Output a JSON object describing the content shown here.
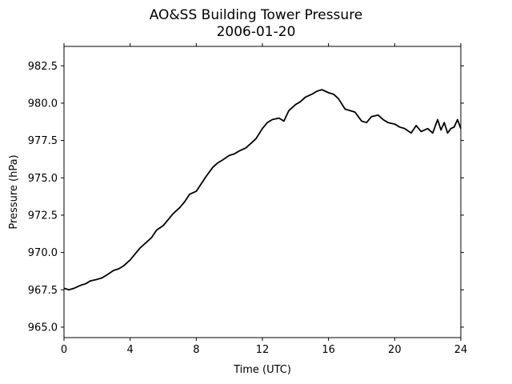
{
  "chart_data": {
    "type": "line",
    "title": "AO&SS Building Tower Pressure",
    "subtitle": "2006-01-20",
    "xlabel": "Time (UTC)",
    "ylabel": "Pressure (hPa)",
    "xlim": [
      0,
      24
    ],
    "ylim": [
      964.3,
      983.8
    ],
    "xticks": [
      0,
      4,
      8,
      12,
      16,
      20,
      24
    ],
    "xtick_labels": [
      "0",
      "4",
      "8",
      "12",
      "16",
      "20",
      "24"
    ],
    "yticks": [
      965.0,
      967.5,
      970.0,
      972.5,
      975.0,
      977.5,
      980.0,
      982.5
    ],
    "ytick_labels": [
      "965.0",
      "967.5",
      "970.0",
      "972.5",
      "975.0",
      "977.5",
      "980.0",
      "982.5"
    ],
    "grid": false,
    "line_color": "#000000",
    "series": [
      {
        "x": [
          0,
          0.3,
          0.6,
          1.0,
          1.3,
          1.6,
          2.0,
          2.3,
          2.6,
          3.0,
          3.3,
          3.6,
          4.0,
          4.3,
          4.6,
          5.0,
          5.3,
          5.6,
          6.0,
          6.3,
          6.6,
          7.0,
          7.3,
          7.6,
          8.0,
          8.3,
          8.6,
          9.0,
          9.3,
          9.6,
          10.0,
          10.3,
          10.6,
          11.0,
          11.3,
          11.6,
          12.0,
          12.3,
          12.6,
          13.0,
          13.3,
          13.6,
          14.0,
          14.3,
          14.6,
          15.0,
          15.3,
          15.6,
          16.0,
          16.3,
          16.6,
          17.0,
          17.3,
          17.6,
          18.0,
          18.3,
          18.6,
          19.0,
          19.3,
          19.6,
          20.0,
          20.3,
          20.6,
          21.0,
          21.3,
          21.6,
          22.0,
          22.3,
          22.6,
          22.8,
          23.0,
          23.2,
          23.4,
          23.6,
          23.8,
          24.0
        ],
        "y": [
          967.6,
          967.5,
          967.6,
          967.8,
          967.9,
          968.1,
          968.2,
          968.3,
          968.5,
          968.8,
          968.9,
          969.1,
          969.5,
          969.9,
          970.3,
          970.7,
          971.0,
          971.5,
          971.8,
          972.2,
          972.6,
          973.0,
          973.4,
          973.9,
          974.1,
          974.6,
          975.1,
          975.7,
          976.0,
          976.2,
          976.5,
          976.6,
          976.8,
          977.0,
          977.3,
          977.6,
          978.3,
          978.7,
          978.9,
          979.0,
          978.8,
          979.5,
          979.9,
          980.1,
          980.4,
          980.6,
          980.8,
          980.9,
          980.7,
          980.6,
          980.3,
          979.6,
          979.5,
          979.4,
          978.8,
          978.7,
          979.1,
          979.2,
          978.9,
          978.7,
          978.6,
          978.4,
          978.3,
          978.0,
          978.5,
          978.1,
          978.3,
          978.0,
          978.9,
          978.2,
          978.7,
          978.0,
          978.3,
          978.4,
          978.9,
          978.3
        ]
      }
    ]
  }
}
